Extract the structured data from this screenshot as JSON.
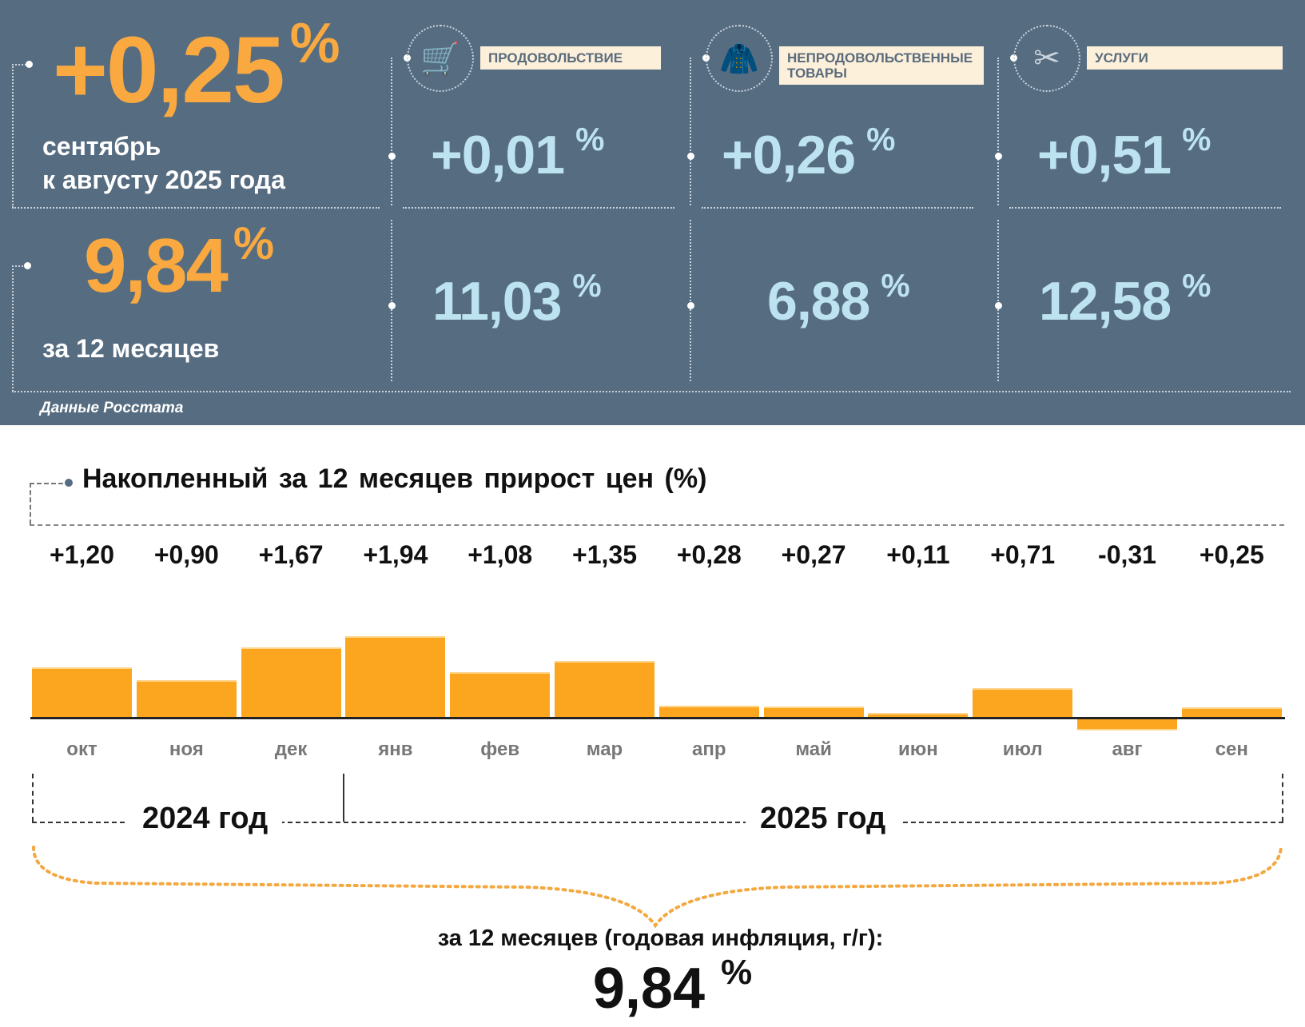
{
  "header": {
    "monthly_value": "+0,25",
    "percent": "%",
    "monthly_caption_line1": "сентябрь",
    "monthly_caption_line2": "к августу 2025 года",
    "annual_value": "9,84",
    "annual_caption": "за 12 месяцев",
    "source": "Данные Росстата"
  },
  "categories": [
    {
      "label": "ПРОДОВОЛЬСТВИЕ",
      "icon": "shopping-cart-icon",
      "monthly": "+0,01",
      "annual": "11,03"
    },
    {
      "label": "НЕПРОДОВОЛЬСТВЕННЫЕ ТОВАРЫ",
      "icon": "clothing-bag-icon",
      "monthly": "+0,26",
      "annual": "6,88"
    },
    {
      "label": "УСЛУГИ",
      "icon": "comb-scissors-icon",
      "monthly": "+0,51",
      "annual": "12,58"
    }
  ],
  "chart_data": {
    "type": "bar",
    "title": "Накопленный за 12 месяцев прирост цен (%)",
    "categories": [
      "окт",
      "ноя",
      "дек",
      "янв",
      "фев",
      "мар",
      "апр",
      "май",
      "июн",
      "июл",
      "авг",
      "сен"
    ],
    "values": [
      1.2,
      0.9,
      1.67,
      1.94,
      1.08,
      1.35,
      0.28,
      0.27,
      0.11,
      0.71,
      -0.31,
      0.25
    ],
    "value_labels": [
      "+1,20",
      "+0,90",
      "+1,67",
      "+1,94",
      "+1,08",
      "+1,35",
      "+0,28",
      "+0,27",
      "+0,11",
      "+0,71",
      "-0,31",
      "+0,25"
    ],
    "years": [
      "2024 год",
      "2025 год"
    ],
    "bar_color": "#fca61f",
    "summary_label": "за 12 месяцев (годовая инфляция, г/г):",
    "summary_value": "9,84",
    "summary_percent": "%"
  }
}
